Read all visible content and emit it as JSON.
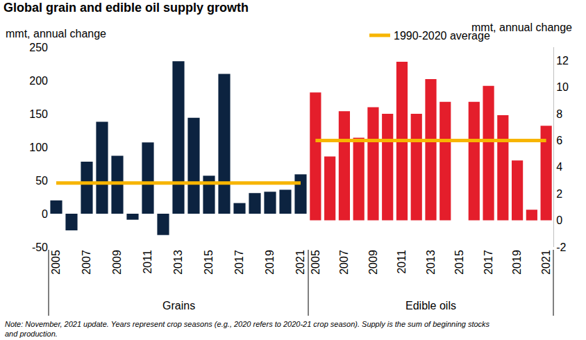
{
  "title": "Global grain and edible oil supply growth",
  "note": [
    "Note: November, 2021 update. Years represent crop seasons (e.g., 2020 refers to 2020-21 crop season). Supply is the sum of beginning stocks",
    "and production."
  ],
  "chart_data": [
    {
      "type": "bar",
      "xlabel": "Grains",
      "ylabel": "mmt, annual change",
      "categories": [
        "2005",
        null,
        "2007",
        null,
        "2009",
        null,
        "2011",
        null,
        "2013",
        null,
        "2015",
        null,
        "2017",
        null,
        "2019",
        null,
        "2021"
      ],
      "values": [
        20,
        -25,
        78,
        138,
        87,
        -9,
        107,
        -32,
        229,
        144,
        57,
        210,
        16,
        31,
        33,
        36,
        59
      ],
      "color": "#0c2340",
      "ylim": [
        -50,
        250
      ],
      "yticks": [
        -50,
        0,
        50,
        100,
        150,
        200,
        250
      ],
      "grid": false,
      "reference_line": {
        "value": 46,
        "color": "#f7b500"
      }
    },
    {
      "type": "bar",
      "xlabel": "Edible oils",
      "ylabel": "mmt, annual change",
      "axis": "y2",
      "categories": [
        "2005",
        null,
        "2007",
        null,
        "2009",
        null,
        "2011",
        null,
        "2013",
        null,
        "2015",
        null,
        "2017",
        null,
        "2019",
        null,
        "2021"
      ],
      "values": [
        9.6,
        4.8,
        8.2,
        6.2,
        8.5,
        8.0,
        11.9,
        8.0,
        10.6,
        8.9,
        0,
        8.9,
        10.1,
        7.9,
        4.5,
        0.8,
        7.1
      ],
      "color": "#e41e2b",
      "y2lim": [
        -2,
        13
      ],
      "y2ticks": [
        -2,
        0,
        2,
        4,
        6,
        8,
        10,
        12
      ],
      "grid": false,
      "reference_line": {
        "name": "1990-2020 average",
        "value": 6,
        "color": "#f7b500"
      }
    }
  ]
}
